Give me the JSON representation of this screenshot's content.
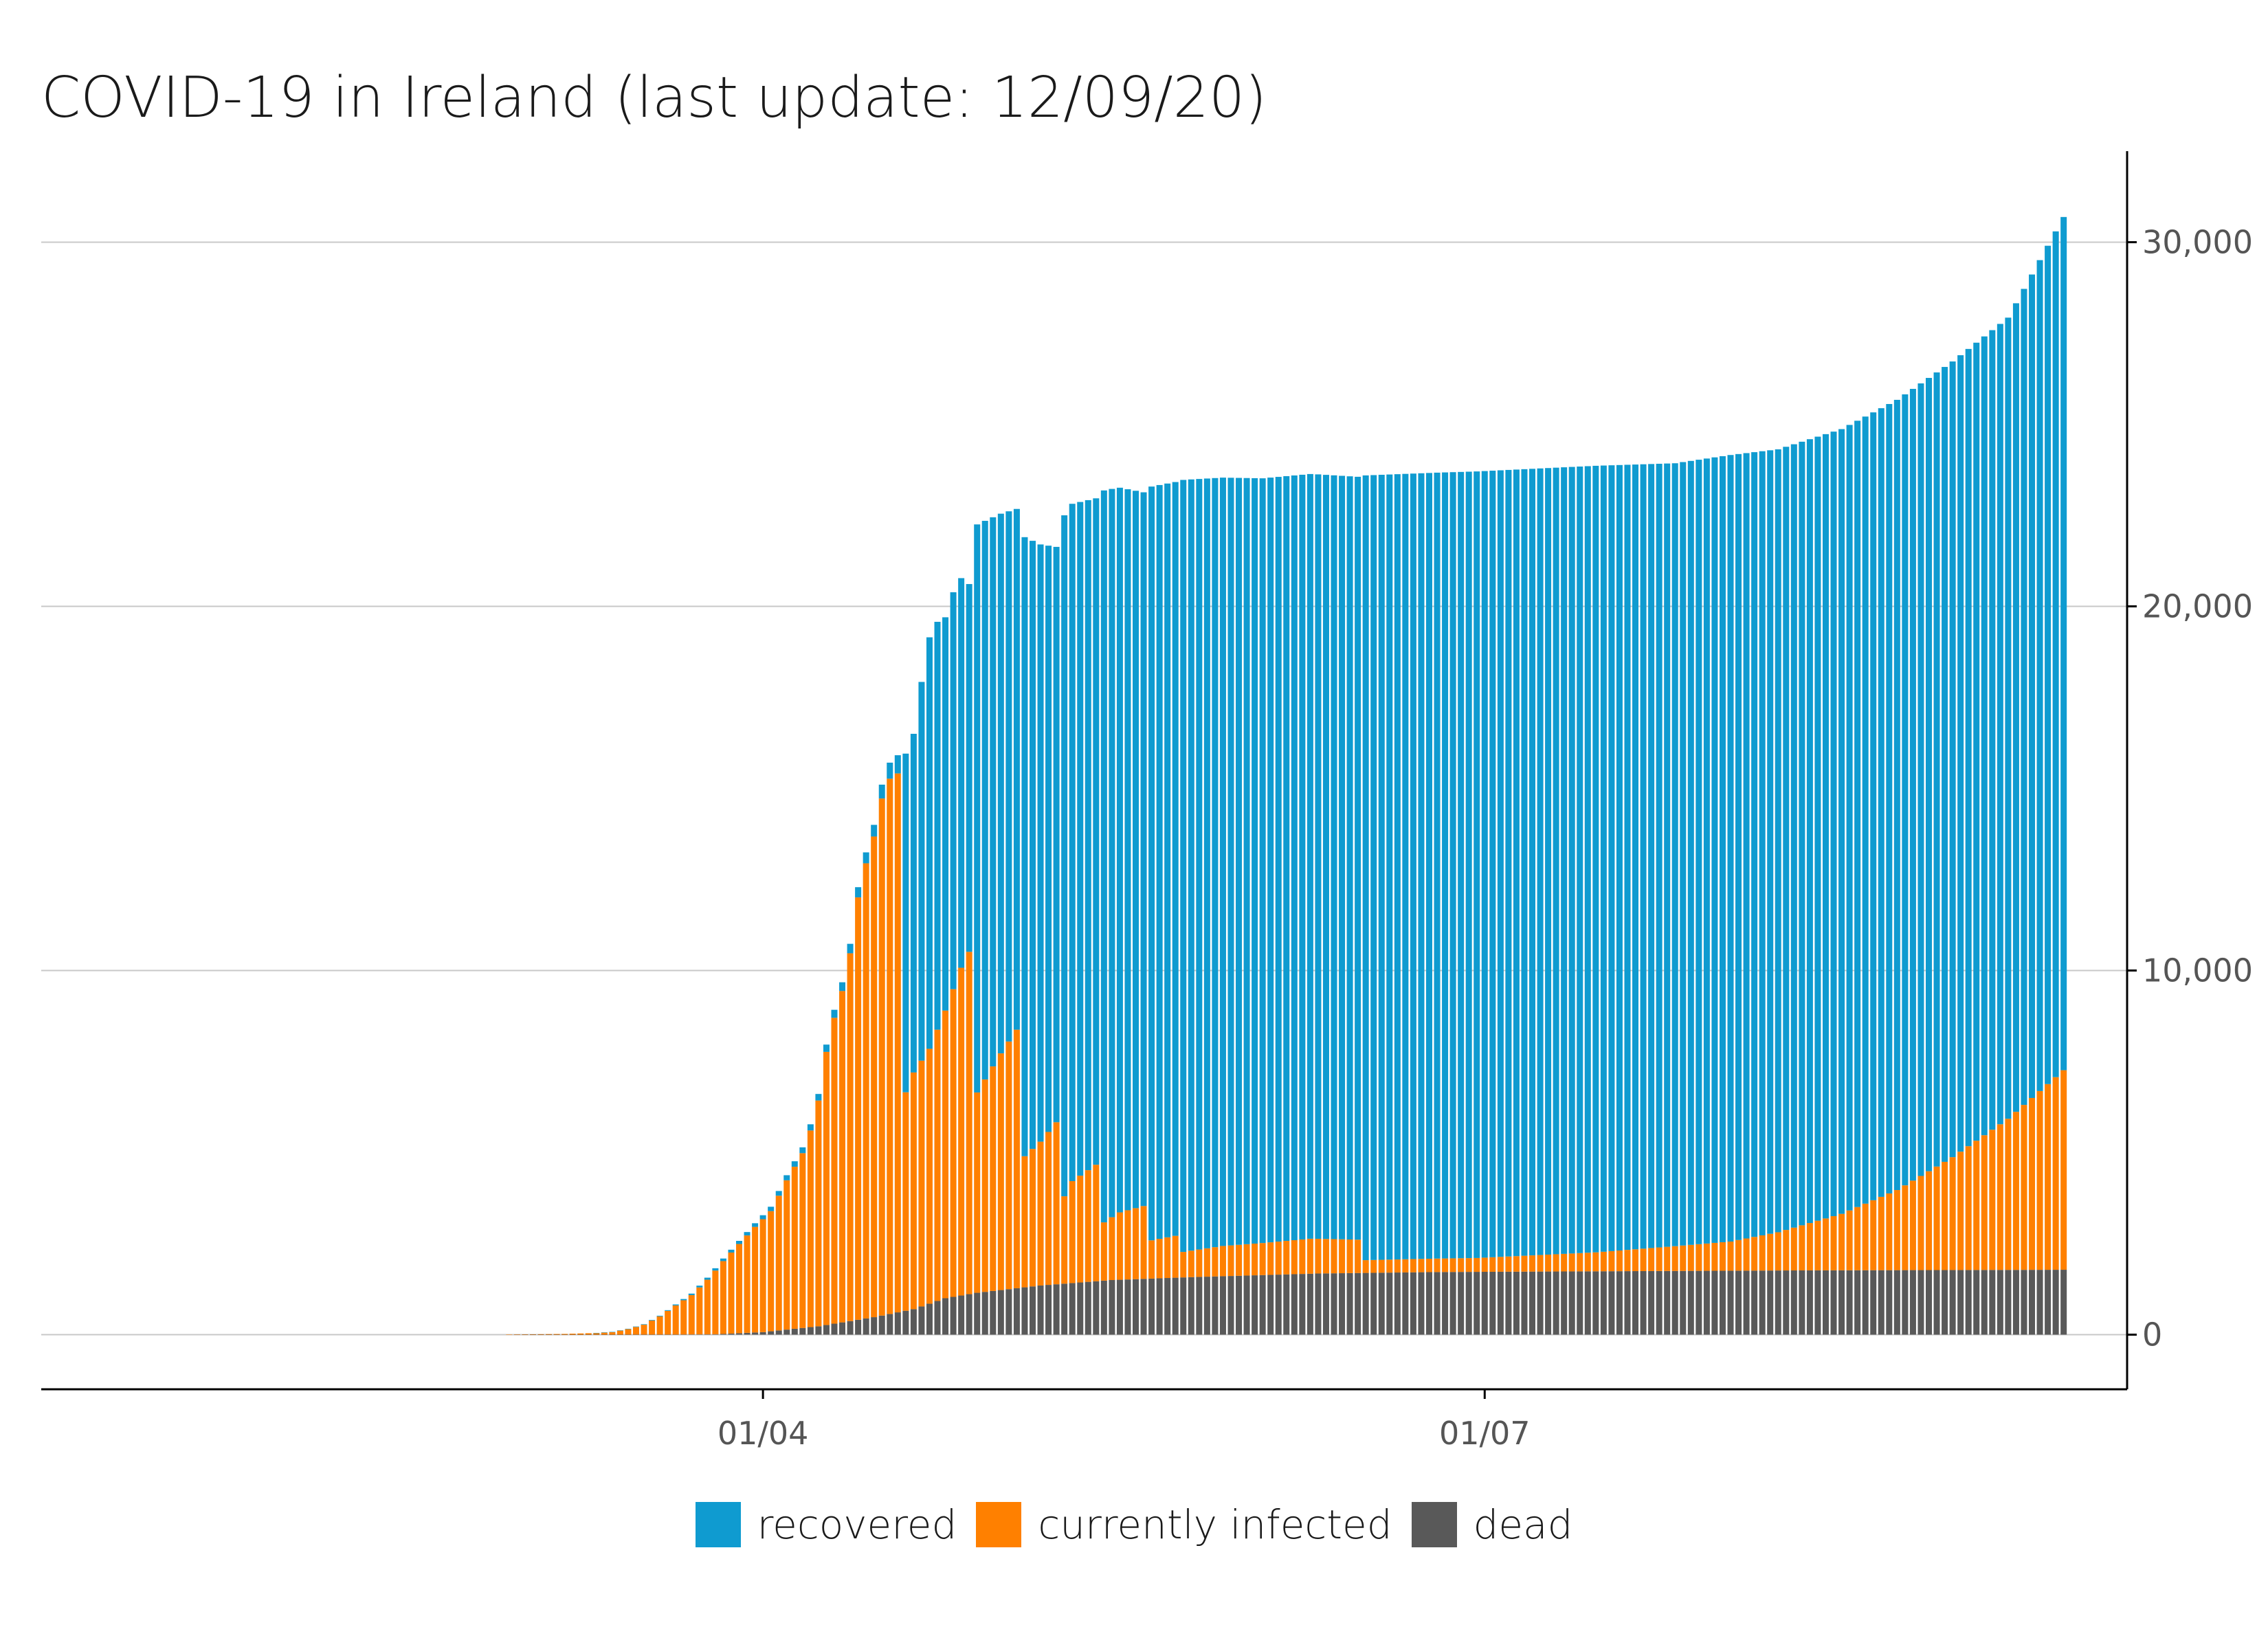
{
  "title": "COVID-19 in Ireland (last update: 12/09/20)",
  "colors": {
    "recovered": "#0f9bd0",
    "infected": "#ff8000",
    "dead": "#595959",
    "grid": "#c8c8c8",
    "axis": "#000000"
  },
  "chart_data": {
    "type": "bar",
    "stacked": true,
    "title": "COVID-19 in Ireland (last update: 12/09/20)",
    "xlabel": "",
    "ylabel": "",
    "x_axis": {
      "type": "date",
      "start": "2020-01-01",
      "end": "2020-09-20",
      "ticks": [
        {
          "date": "2020-04-01",
          "label": "01/04"
        },
        {
          "date": "2020-07-01",
          "label": "01/07"
        }
      ]
    },
    "y_axis": {
      "position": "right",
      "ylim": [
        -1500,
        32500
      ],
      "ticks": [
        {
          "value": 0,
          "label": "0"
        },
        {
          "value": 10000,
          "label": "10,000"
        },
        {
          "value": 20000,
          "label": "20,000"
        },
        {
          "value": 30000,
          "label": "30,000"
        }
      ]
    },
    "grid": "horizontal",
    "legend": {
      "position": "bottom",
      "entries": [
        {
          "key": "recovered",
          "label": "recovered"
        },
        {
          "key": "infected",
          "label": "currently infected"
        },
        {
          "key": "dead",
          "label": "dead"
        }
      ]
    },
    "data_start": "2020-02-29",
    "data_end": "2020-09-12",
    "series": [
      {
        "key": "dead",
        "name": "dead",
        "stack_order": 0,
        "anchors": [
          [
            "2020-02-29",
            0
          ],
          [
            "2020-03-11",
            1
          ],
          [
            "2020-03-21",
            3
          ],
          [
            "2020-03-26",
            10
          ],
          [
            "2020-04-01",
            70
          ],
          [
            "2020-04-08",
            230
          ],
          [
            "2020-04-15",
            480
          ],
          [
            "2020-04-20",
            700
          ],
          [
            "2020-04-24",
            1000
          ],
          [
            "2020-04-28",
            1150
          ],
          [
            "2020-05-06",
            1350
          ],
          [
            "2020-05-15",
            1500
          ],
          [
            "2020-05-25",
            1580
          ],
          [
            "2020-06-10",
            1680
          ],
          [
            "2020-06-25",
            1720
          ],
          [
            "2020-07-15",
            1740
          ],
          [
            "2020-08-10",
            1765
          ],
          [
            "2020-09-12",
            1782
          ]
        ]
      },
      {
        "key": "infected",
        "name": "currently infected",
        "stack_order": 1,
        "anchors": [
          [
            "2020-02-29",
            2
          ],
          [
            "2020-03-07",
            20
          ],
          [
            "2020-03-11",
            45
          ],
          [
            "2020-03-13",
            70
          ],
          [
            "2020-03-15",
            150
          ],
          [
            "2020-03-17",
            270
          ],
          [
            "2020-03-19",
            500
          ],
          [
            "2020-03-21",
            800
          ],
          [
            "2020-03-23",
            1080
          ],
          [
            "2020-03-25",
            1500
          ],
          [
            "2020-03-27",
            2000
          ],
          [
            "2020-03-29",
            2450
          ],
          [
            "2020-03-31",
            2900
          ],
          [
            "2020-04-02",
            3300
          ],
          [
            "2020-04-04",
            4100
          ],
          [
            "2020-04-06",
            4800
          ],
          [
            "2020-04-07",
            5400
          ],
          [
            "2020-04-08",
            6200
          ],
          [
            "2020-04-09",
            7500
          ],
          [
            "2020-04-10",
            8400
          ],
          [
            "2020-04-11",
            9100
          ],
          [
            "2020-04-12",
            10100
          ],
          [
            "2020-04-13",
            11600
          ],
          [
            "2020-04-14",
            12500
          ],
          [
            "2020-04-15",
            13200
          ],
          [
            "2020-04-16",
            14200
          ],
          [
            "2020-04-17",
            14700
          ],
          [
            "2020-04-18",
            14800
          ],
          [
            "2020-04-19",
            6000
          ],
          [
            "2020-04-20",
            6500
          ],
          [
            "2020-04-22",
            7000
          ],
          [
            "2020-04-24",
            7900
          ],
          [
            "2020-04-26",
            9000
          ],
          [
            "2020-04-27",
            9400
          ],
          [
            "2020-04-28",
            5500
          ],
          [
            "2020-05-01",
            6500
          ],
          [
            "2020-05-03",
            7100
          ],
          [
            "2020-05-04",
            3600
          ],
          [
            "2020-05-06",
            3950
          ],
          [
            "2020-05-08",
            4450
          ],
          [
            "2020-05-09",
            2400
          ],
          [
            "2020-05-10",
            2800
          ],
          [
            "2020-05-13",
            3200
          ],
          [
            "2020-05-14",
            1600
          ],
          [
            "2020-05-16",
            1850
          ],
          [
            "2020-05-19",
            2000
          ],
          [
            "2020-05-20",
            1050
          ],
          [
            "2020-05-23",
            1150
          ],
          [
            "2020-05-24",
            700
          ],
          [
            "2020-05-29",
            830
          ],
          [
            "2020-06-03",
            880
          ],
          [
            "2020-06-09",
            960
          ],
          [
            "2020-06-15",
            915
          ],
          [
            "2020-06-16",
            350
          ],
          [
            "2020-06-30",
            380
          ],
          [
            "2020-07-15",
            520
          ],
          [
            "2020-07-25",
            680
          ],
          [
            "2020-08-01",
            800
          ],
          [
            "2020-08-07",
            1050
          ],
          [
            "2020-08-15",
            1550
          ],
          [
            "2020-08-22",
            2200
          ],
          [
            "2020-08-29",
            3100
          ],
          [
            "2020-09-05",
            4150
          ],
          [
            "2020-09-12",
            5480
          ]
        ]
      },
      {
        "key": "recovered",
        "name": "recovered",
        "stack_order": 2,
        "anchors": [
          [
            "2020-02-29",
            0
          ],
          [
            "2020-03-10",
            0
          ],
          [
            "2020-03-20",
            20
          ],
          [
            "2020-03-31",
            100
          ],
          [
            "2020-04-08",
            180
          ],
          [
            "2020-04-15",
            320
          ],
          [
            "2020-04-18",
            500
          ],
          [
            "2020-04-19",
            9300
          ],
          [
            "2020-04-20",
            9300
          ],
          [
            "2020-04-21",
            10400
          ],
          [
            "2020-04-22",
            11300
          ],
          [
            "2020-04-23",
            11200
          ],
          [
            "2020-04-24",
            10800
          ],
          [
            "2020-04-25",
            10900
          ],
          [
            "2020-04-26",
            10700
          ],
          [
            "2020-04-27",
            10100
          ],
          [
            "2020-04-28",
            15600
          ],
          [
            "2020-05-03",
            14300
          ],
          [
            "2020-05-04",
            17000
          ],
          [
            "2020-05-08",
            15800
          ],
          [
            "2020-05-09",
            18700
          ],
          [
            "2020-05-13",
            18300
          ],
          [
            "2020-05-14",
            20100
          ],
          [
            "2020-05-19",
            19600
          ],
          [
            "2020-05-20",
            20700
          ],
          [
            "2020-05-23",
            20700
          ],
          [
            "2020-05-24",
            21200
          ],
          [
            "2020-06-03",
            21000
          ],
          [
            "2020-06-09",
            21000
          ],
          [
            "2020-06-15",
            20950
          ],
          [
            "2020-06-16",
            21550
          ],
          [
            "2020-06-30",
            21600
          ],
          [
            "2020-07-15",
            21600
          ],
          [
            "2020-07-25",
            21500
          ],
          [
            "2020-08-01",
            21600
          ],
          [
            "2020-08-07",
            21500
          ],
          [
            "2020-08-15",
            21550
          ],
          [
            "2020-08-22",
            21700
          ],
          [
            "2020-08-29",
            21850
          ],
          [
            "2020-09-05",
            22000
          ],
          [
            "2020-09-12",
            23430
          ]
        ]
      }
    ],
    "totals_end": {
      "dead": 1782,
      "infected": 5480,
      "recovered": 23430,
      "total": 30692
    }
  }
}
